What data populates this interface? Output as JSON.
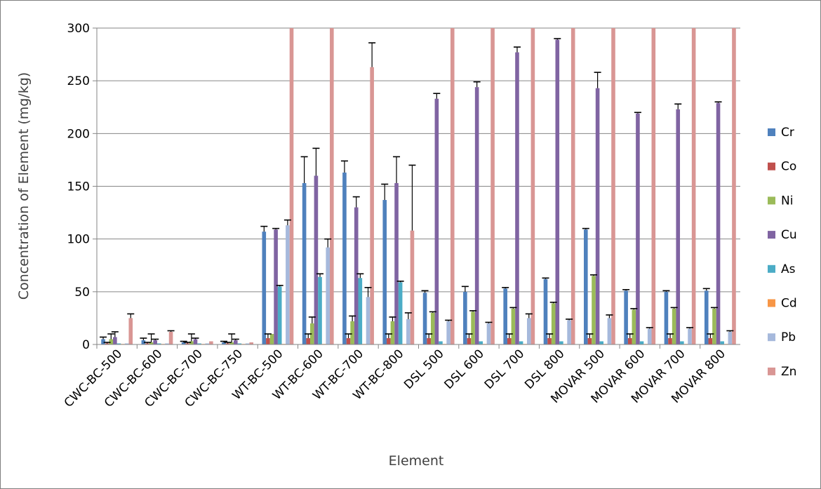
{
  "chart_data": {
    "type": "bar",
    "title": "",
    "xlabel": "Element",
    "ylabel": "Concentration of Element  (mg/kg)",
    "ylim": [
      0,
      300
    ],
    "yticks": [
      0,
      50,
      100,
      150,
      200,
      250,
      300
    ],
    "grid": true,
    "legend_position": "right",
    "categories": [
      "CWC-BC-500",
      "CWC-BC-600",
      "CWC-BC-700",
      "CWC-BC-750",
      "WT-BC-500",
      "WT-BC-600",
      "WT-BC-700",
      "WT-BC-800",
      "DSL 500",
      "DSL 600",
      "DSL 700",
      "DSL 800",
      "MOVAR 500",
      "MOVAR 600",
      "MOVAR 700",
      "MOVAR 800"
    ],
    "series": [
      {
        "name": "Cr",
        "color": "#4f81bd",
        "values": [
          5,
          4,
          2,
          2,
          107,
          153,
          163,
          137,
          49,
          50,
          53,
          62,
          109,
          51,
          50,
          51
        ],
        "errors": [
          2,
          2,
          1,
          1,
          5,
          25,
          11,
          15,
          2,
          5,
          1,
          1,
          1,
          1,
          1,
          2
        ]
      },
      {
        "name": "Co",
        "color": "#c0504d",
        "values": [
          1,
          1,
          1,
          1,
          6,
          6,
          6,
          6,
          6,
          6,
          6,
          6,
          6,
          6,
          6,
          6
        ],
        "errors": [
          1,
          1,
          1,
          1,
          4,
          4,
          4,
          4,
          4,
          4,
          4,
          4,
          4,
          4,
          4,
          4
        ]
      },
      {
        "name": "Ni",
        "color": "#9bbb59",
        "values": [
          5,
          2,
          3,
          2,
          10,
          20,
          22,
          22,
          30,
          31,
          34,
          39,
          65,
          33,
          34,
          34
        ],
        "errors": [
          5,
          8,
          7,
          8,
          0,
          6,
          5,
          4,
          1,
          1,
          1,
          1,
          1,
          1,
          1,
          1
        ]
      },
      {
        "name": "Cu",
        "color": "#8064a2",
        "values": [
          7,
          4,
          5,
          4,
          109,
          160,
          130,
          153,
          233,
          244,
          277,
          289,
          243,
          219,
          223,
          229
        ],
        "errors": [
          5,
          1,
          1,
          1,
          1,
          26,
          10,
          25,
          5,
          5,
          5,
          1,
          15,
          1,
          5,
          1
        ]
      },
      {
        "name": "As",
        "color": "#4bacc6",
        "values": [
          1,
          1,
          1,
          1,
          55,
          64,
          63,
          59,
          3,
          3,
          3,
          3,
          3,
          3,
          3,
          3
        ],
        "errors": [
          0,
          0,
          0,
          0,
          1,
          3,
          4,
          1,
          0,
          0,
          0,
          0,
          0,
          0,
          0,
          0
        ]
      },
      {
        "name": "Cd",
        "color": "#f79646",
        "values": [
          0.5,
          0.5,
          0.5,
          0.5,
          0.5,
          0.5,
          0.5,
          0.5,
          0.5,
          0.5,
          0.5,
          0.5,
          0.5,
          0.5,
          0.5,
          0.5
        ],
        "errors": [
          0,
          0,
          0,
          0,
          0,
          0,
          0,
          0,
          0,
          0,
          0,
          0,
          0,
          0,
          0,
          0
        ]
      },
      {
        "name": "Pb",
        "color": "#a6b9dc",
        "values": [
          1,
          1,
          1,
          1,
          113,
          92,
          45,
          24,
          22,
          20,
          25,
          23,
          25,
          15,
          15,
          12
        ],
        "errors": [
          0,
          0,
          0,
          0,
          5,
          8,
          9,
          6,
          1,
          1,
          4,
          1,
          3,
          1,
          1,
          1
        ]
      },
      {
        "name": "Zn",
        "color": "#d99694",
        "values": [
          25,
          12,
          3,
          2,
          300,
          300,
          263,
          108,
          300,
          300,
          300,
          300,
          300,
          300,
          300,
          300
        ],
        "errors": [
          4,
          1,
          0,
          0,
          0,
          0,
          23,
          62,
          0,
          0,
          0,
          0,
          0,
          0,
          0,
          0
        ]
      }
    ]
  }
}
